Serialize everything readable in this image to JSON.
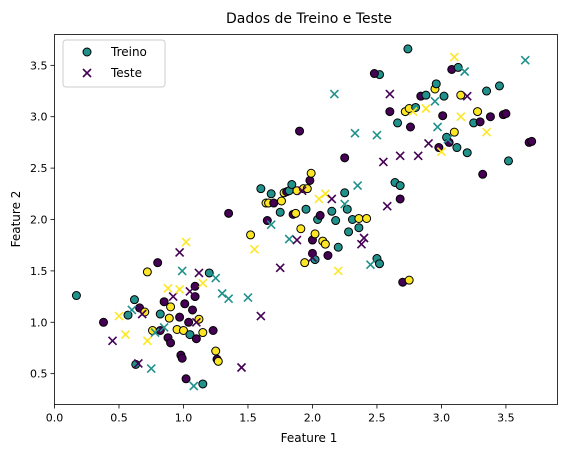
{
  "chart_data": {
    "type": "scatter",
    "title": "Dados de Treino e Teste",
    "xlabel": "Feature 1",
    "ylabel": "Feature 2",
    "xlim": [
      0.0,
      3.9
    ],
    "ylim": [
      0.2,
      3.8
    ],
    "x_ticks": [
      "0.0",
      "0.5",
      "1.0",
      "1.5",
      "2.0",
      "2.5",
      "3.0",
      "3.5"
    ],
    "y_ticks": [
      "0.5",
      "1.0",
      "1.5",
      "2.0",
      "2.5",
      "3.0",
      "3.5"
    ],
    "grid": false,
    "legend": {
      "placement": "top-left",
      "entries": [
        "Treino",
        "Teste"
      ]
    },
    "colors": {
      "purple": "#440154",
      "teal": "#21918c",
      "yellow": "#fde725"
    },
    "series": [
      {
        "name": "Treino",
        "marker": "circle",
        "points": [
          {
            "x": 0.17,
            "y": 1.26,
            "c": "teal"
          },
          {
            "x": 0.38,
            "y": 1.0,
            "c": "purple"
          },
          {
            "x": 0.57,
            "y": 1.07,
            "c": "teal"
          },
          {
            "x": 0.62,
            "y": 1.22,
            "c": "teal"
          },
          {
            "x": 0.66,
            "y": 1.14,
            "c": "purple"
          },
          {
            "x": 0.7,
            "y": 1.1,
            "c": "yellow"
          },
          {
            "x": 0.63,
            "y": 0.59,
            "c": "teal"
          },
          {
            "x": 0.72,
            "y": 1.49,
            "c": "yellow"
          },
          {
            "x": 0.76,
            "y": 0.92,
            "c": "yellow"
          },
          {
            "x": 0.8,
            "y": 1.58,
            "c": "purple"
          },
          {
            "x": 0.82,
            "y": 1.08,
            "c": "teal"
          },
          {
            "x": 0.82,
            "y": 0.92,
            "c": "purple"
          },
          {
            "x": 0.85,
            "y": 1.2,
            "c": "purple"
          },
          {
            "x": 0.88,
            "y": 0.85,
            "c": "purple"
          },
          {
            "x": 0.89,
            "y": 1.04,
            "c": "yellow"
          },
          {
            "x": 0.9,
            "y": 0.8,
            "c": "purple"
          },
          {
            "x": 0.9,
            "y": 1.15,
            "c": "yellow"
          },
          {
            "x": 0.95,
            "y": 0.93,
            "c": "yellow"
          },
          {
            "x": 0.97,
            "y": 1.05,
            "c": "purple"
          },
          {
            "x": 0.98,
            "y": 0.68,
            "c": "purple"
          },
          {
            "x": 0.99,
            "y": 0.65,
            "c": "purple"
          },
          {
            "x": 1.0,
            "y": 0.92,
            "c": "yellow"
          },
          {
            "x": 1.01,
            "y": 1.18,
            "c": "purple"
          },
          {
            "x": 1.02,
            "y": 0.45,
            "c": "purple"
          },
          {
            "x": 1.04,
            "y": 1.0,
            "c": "purple"
          },
          {
            "x": 1.05,
            "y": 0.88,
            "c": "teal"
          },
          {
            "x": 1.07,
            "y": 1.12,
            "c": "purple"
          },
          {
            "x": 1.09,
            "y": 1.25,
            "c": "purple"
          },
          {
            "x": 1.09,
            "y": 1.35,
            "c": "purple"
          },
          {
            "x": 1.1,
            "y": 0.84,
            "c": "purple"
          },
          {
            "x": 1.12,
            "y": 1.03,
            "c": "yellow"
          },
          {
            "x": 1.15,
            "y": 0.4,
            "c": "teal"
          },
          {
            "x": 1.15,
            "y": 0.9,
            "c": "yellow"
          },
          {
            "x": 1.2,
            "y": 1.48,
            "c": "teal"
          },
          {
            "x": 1.23,
            "y": 0.92,
            "c": "purple"
          },
          {
            "x": 1.25,
            "y": 0.72,
            "c": "yellow"
          },
          {
            "x": 1.26,
            "y": 0.64,
            "c": "purple"
          },
          {
            "x": 1.27,
            "y": 0.62,
            "c": "yellow"
          },
          {
            "x": 1.35,
            "y": 2.06,
            "c": "purple"
          },
          {
            "x": 1.52,
            "y": 1.85,
            "c": "yellow"
          },
          {
            "x": 1.6,
            "y": 2.3,
            "c": "teal"
          },
          {
            "x": 1.64,
            "y": 2.16,
            "c": "yellow"
          },
          {
            "x": 1.65,
            "y": 1.99,
            "c": "purple"
          },
          {
            "x": 1.66,
            "y": 2.16,
            "c": "yellow"
          },
          {
            "x": 1.68,
            "y": 2.25,
            "c": "teal"
          },
          {
            "x": 1.7,
            "y": 2.16,
            "c": "purple"
          },
          {
            "x": 1.75,
            "y": 2.07,
            "c": "teal"
          },
          {
            "x": 1.76,
            "y": 2.18,
            "c": "yellow"
          },
          {
            "x": 1.78,
            "y": 2.26,
            "c": "yellow"
          },
          {
            "x": 1.8,
            "y": 2.27,
            "c": "purple"
          },
          {
            "x": 1.82,
            "y": 2.28,
            "c": "teal"
          },
          {
            "x": 1.84,
            "y": 2.34,
            "c": "teal"
          },
          {
            "x": 1.85,
            "y": 2.05,
            "c": "purple"
          },
          {
            "x": 1.87,
            "y": 2.06,
            "c": "yellow"
          },
          {
            "x": 1.88,
            "y": 2.28,
            "c": "yellow"
          },
          {
            "x": 1.9,
            "y": 2.86,
            "c": "purple"
          },
          {
            "x": 1.91,
            "y": 1.91,
            "c": "yellow"
          },
          {
            "x": 1.93,
            "y": 2.3,
            "c": "yellow"
          },
          {
            "x": 1.94,
            "y": 1.58,
            "c": "yellow"
          },
          {
            "x": 1.95,
            "y": 2.1,
            "c": "teal"
          },
          {
            "x": 1.96,
            "y": 2.3,
            "c": "yellow"
          },
          {
            "x": 1.98,
            "y": 2.38,
            "c": "purple"
          },
          {
            "x": 1.99,
            "y": 2.45,
            "c": "yellow"
          },
          {
            "x": 2.0,
            "y": 1.8,
            "c": "purple"
          },
          {
            "x": 2.0,
            "y": 1.67,
            "c": "purple"
          },
          {
            "x": 2.02,
            "y": 1.61,
            "c": "teal"
          },
          {
            "x": 2.02,
            "y": 1.86,
            "c": "yellow"
          },
          {
            "x": 2.04,
            "y": 2.0,
            "c": "teal"
          },
          {
            "x": 2.06,
            "y": 2.04,
            "c": "purple"
          },
          {
            "x": 2.08,
            "y": 1.79,
            "c": "yellow"
          },
          {
            "x": 2.1,
            "y": 1.76,
            "c": "yellow"
          },
          {
            "x": 2.12,
            "y": 1.65,
            "c": "purple"
          },
          {
            "x": 2.15,
            "y": 2.08,
            "c": "teal"
          },
          {
            "x": 2.18,
            "y": 1.99,
            "c": "teal"
          },
          {
            "x": 2.2,
            "y": 1.73,
            "c": "teal"
          },
          {
            "x": 2.25,
            "y": 2.26,
            "c": "teal"
          },
          {
            "x": 2.25,
            "y": 2.6,
            "c": "purple"
          },
          {
            "x": 2.27,
            "y": 2.1,
            "c": "teal"
          },
          {
            "x": 2.28,
            "y": 1.88,
            "c": "teal"
          },
          {
            "x": 2.31,
            "y": 2.0,
            "c": "teal"
          },
          {
            "x": 2.36,
            "y": 1.92,
            "c": "teal"
          },
          {
            "x": 2.36,
            "y": 2.01,
            "c": "yellow"
          },
          {
            "x": 2.42,
            "y": 2.01,
            "c": "yellow"
          },
          {
            "x": 2.5,
            "y": 1.62,
            "c": "teal"
          },
          {
            "x": 2.52,
            "y": 1.57,
            "c": "teal"
          },
          {
            "x": 2.52,
            "y": 3.41,
            "c": "teal"
          },
          {
            "x": 2.48,
            "y": 3.42,
            "c": "purple"
          },
          {
            "x": 2.6,
            "y": 3.05,
            "c": "purple"
          },
          {
            "x": 2.64,
            "y": 2.36,
            "c": "teal"
          },
          {
            "x": 2.66,
            "y": 2.94,
            "c": "teal"
          },
          {
            "x": 2.68,
            "y": 2.33,
            "c": "teal"
          },
          {
            "x": 2.68,
            "y": 2.2,
            "c": "purple"
          },
          {
            "x": 2.7,
            "y": 1.39,
            "c": "purple"
          },
          {
            "x": 2.72,
            "y": 3.05,
            "c": "yellow"
          },
          {
            "x": 2.74,
            "y": 3.66,
            "c": "teal"
          },
          {
            "x": 2.75,
            "y": 1.41,
            "c": "yellow"
          },
          {
            "x": 2.75,
            "y": 3.08,
            "c": "yellow"
          },
          {
            "x": 2.76,
            "y": 2.9,
            "c": "purple"
          },
          {
            "x": 2.8,
            "y": 3.09,
            "c": "teal"
          },
          {
            "x": 2.84,
            "y": 3.2,
            "c": "purple"
          },
          {
            "x": 2.88,
            "y": 3.21,
            "c": "teal"
          },
          {
            "x": 2.95,
            "y": 3.27,
            "c": "yellow"
          },
          {
            "x": 2.96,
            "y": 3.32,
            "c": "teal"
          },
          {
            "x": 2.98,
            "y": 2.7,
            "c": "purple"
          },
          {
            "x": 3.01,
            "y": 3.01,
            "c": "purple"
          },
          {
            "x": 3.02,
            "y": 3.2,
            "c": "teal"
          },
          {
            "x": 3.04,
            "y": 2.8,
            "c": "teal"
          },
          {
            "x": 3.06,
            "y": 2.75,
            "c": "purple"
          },
          {
            "x": 3.08,
            "y": 3.46,
            "c": "purple"
          },
          {
            "x": 3.1,
            "y": 2.85,
            "c": "yellow"
          },
          {
            "x": 3.12,
            "y": 2.7,
            "c": "teal"
          },
          {
            "x": 3.13,
            "y": 3.48,
            "c": "teal"
          },
          {
            "x": 3.15,
            "y": 3.21,
            "c": "yellow"
          },
          {
            "x": 3.2,
            "y": 2.65,
            "c": "teal"
          },
          {
            "x": 3.25,
            "y": 2.94,
            "c": "teal"
          },
          {
            "x": 3.28,
            "y": 3.05,
            "c": "yellow"
          },
          {
            "x": 3.3,
            "y": 2.95,
            "c": "purple"
          },
          {
            "x": 3.32,
            "y": 2.44,
            "c": "purple"
          },
          {
            "x": 3.35,
            "y": 3.25,
            "c": "teal"
          },
          {
            "x": 3.38,
            "y": 3.0,
            "c": "purple"
          },
          {
            "x": 3.45,
            "y": 3.3,
            "c": "teal"
          },
          {
            "x": 3.48,
            "y": 3.02,
            "c": "purple"
          },
          {
            "x": 3.5,
            "y": 3.03,
            "c": "purple"
          },
          {
            "x": 3.52,
            "y": 2.57,
            "c": "teal"
          },
          {
            "x": 3.68,
            "y": 2.75,
            "c": "purple"
          },
          {
            "x": 3.7,
            "y": 2.76,
            "c": "purple"
          }
        ]
      },
      {
        "name": "Teste",
        "marker": "x",
        "points": [
          {
            "x": 0.45,
            "y": 0.82,
            "c": "purple"
          },
          {
            "x": 0.5,
            "y": 1.06,
            "c": "yellow"
          },
          {
            "x": 0.55,
            "y": 0.88,
            "c": "yellow"
          },
          {
            "x": 0.6,
            "y": 1.12,
            "c": "teal"
          },
          {
            "x": 0.65,
            "y": 0.6,
            "c": "purple"
          },
          {
            "x": 0.68,
            "y": 1.08,
            "c": "purple"
          },
          {
            "x": 0.72,
            "y": 0.82,
            "c": "yellow"
          },
          {
            "x": 0.75,
            "y": 0.55,
            "c": "teal"
          },
          {
            "x": 0.78,
            "y": 0.9,
            "c": "teal"
          },
          {
            "x": 0.85,
            "y": 0.95,
            "c": "teal"
          },
          {
            "x": 0.88,
            "y": 1.33,
            "c": "yellow"
          },
          {
            "x": 0.92,
            "y": 1.25,
            "c": "purple"
          },
          {
            "x": 0.97,
            "y": 1.68,
            "c": "purple"
          },
          {
            "x": 0.97,
            "y": 1.32,
            "c": "yellow"
          },
          {
            "x": 0.99,
            "y": 1.5,
            "c": "teal"
          },
          {
            "x": 1.02,
            "y": 1.78,
            "c": "yellow"
          },
          {
            "x": 1.05,
            "y": 1.3,
            "c": "purple"
          },
          {
            "x": 1.08,
            "y": 0.38,
            "c": "teal"
          },
          {
            "x": 1.1,
            "y": 1.0,
            "c": "purple"
          },
          {
            "x": 1.12,
            "y": 1.48,
            "c": "purple"
          },
          {
            "x": 1.15,
            "y": 1.38,
            "c": "yellow"
          },
          {
            "x": 1.25,
            "y": 1.43,
            "c": "teal"
          },
          {
            "x": 1.3,
            "y": 1.28,
            "c": "teal"
          },
          {
            "x": 1.35,
            "y": 1.23,
            "c": "teal"
          },
          {
            "x": 1.45,
            "y": 0.56,
            "c": "purple"
          },
          {
            "x": 1.5,
            "y": 1.24,
            "c": "teal"
          },
          {
            "x": 1.55,
            "y": 1.71,
            "c": "yellow"
          },
          {
            "x": 1.6,
            "y": 1.06,
            "c": "purple"
          },
          {
            "x": 1.68,
            "y": 1.95,
            "c": "teal"
          },
          {
            "x": 1.75,
            "y": 1.53,
            "c": "purple"
          },
          {
            "x": 1.82,
            "y": 1.81,
            "c": "teal"
          },
          {
            "x": 1.88,
            "y": 1.8,
            "c": "purple"
          },
          {
            "x": 1.92,
            "y": 2.28,
            "c": "purple"
          },
          {
            "x": 2.0,
            "y": 1.63,
            "c": "purple"
          },
          {
            "x": 2.05,
            "y": 2.2,
            "c": "yellow"
          },
          {
            "x": 2.1,
            "y": 2.25,
            "c": "yellow"
          },
          {
            "x": 2.15,
            "y": 2.2,
            "c": "purple"
          },
          {
            "x": 2.17,
            "y": 3.22,
            "c": "teal"
          },
          {
            "x": 2.2,
            "y": 1.5,
            "c": "yellow"
          },
          {
            "x": 2.25,
            "y": 2.15,
            "c": "teal"
          },
          {
            "x": 2.33,
            "y": 2.84,
            "c": "teal"
          },
          {
            "x": 2.35,
            "y": 2.33,
            "c": "teal"
          },
          {
            "x": 2.38,
            "y": 1.76,
            "c": "purple"
          },
          {
            "x": 2.4,
            "y": 1.82,
            "c": "purple"
          },
          {
            "x": 2.45,
            "y": 1.56,
            "c": "teal"
          },
          {
            "x": 2.5,
            "y": 2.82,
            "c": "teal"
          },
          {
            "x": 2.55,
            "y": 2.56,
            "c": "purple"
          },
          {
            "x": 2.58,
            "y": 2.13,
            "c": "purple"
          },
          {
            "x": 2.6,
            "y": 3.22,
            "c": "purple"
          },
          {
            "x": 2.68,
            "y": 2.62,
            "c": "purple"
          },
          {
            "x": 2.78,
            "y": 3.05,
            "c": "yellow"
          },
          {
            "x": 2.82,
            "y": 2.62,
            "c": "purple"
          },
          {
            "x": 2.88,
            "y": 3.08,
            "c": "yellow"
          },
          {
            "x": 2.9,
            "y": 2.74,
            "c": "purple"
          },
          {
            "x": 2.95,
            "y": 3.15,
            "c": "teal"
          },
          {
            "x": 2.97,
            "y": 2.9,
            "c": "teal"
          },
          {
            "x": 3.0,
            "y": 2.66,
            "c": "yellow"
          },
          {
            "x": 3.05,
            "y": 2.78,
            "c": "teal"
          },
          {
            "x": 3.1,
            "y": 3.58,
            "c": "yellow"
          },
          {
            "x": 3.15,
            "y": 3.0,
            "c": "yellow"
          },
          {
            "x": 3.18,
            "y": 3.44,
            "c": "teal"
          },
          {
            "x": 3.2,
            "y": 3.2,
            "c": "purple"
          },
          {
            "x": 3.35,
            "y": 2.85,
            "c": "yellow"
          },
          {
            "x": 3.65,
            "y": 3.55,
            "c": "teal"
          }
        ]
      }
    ]
  }
}
